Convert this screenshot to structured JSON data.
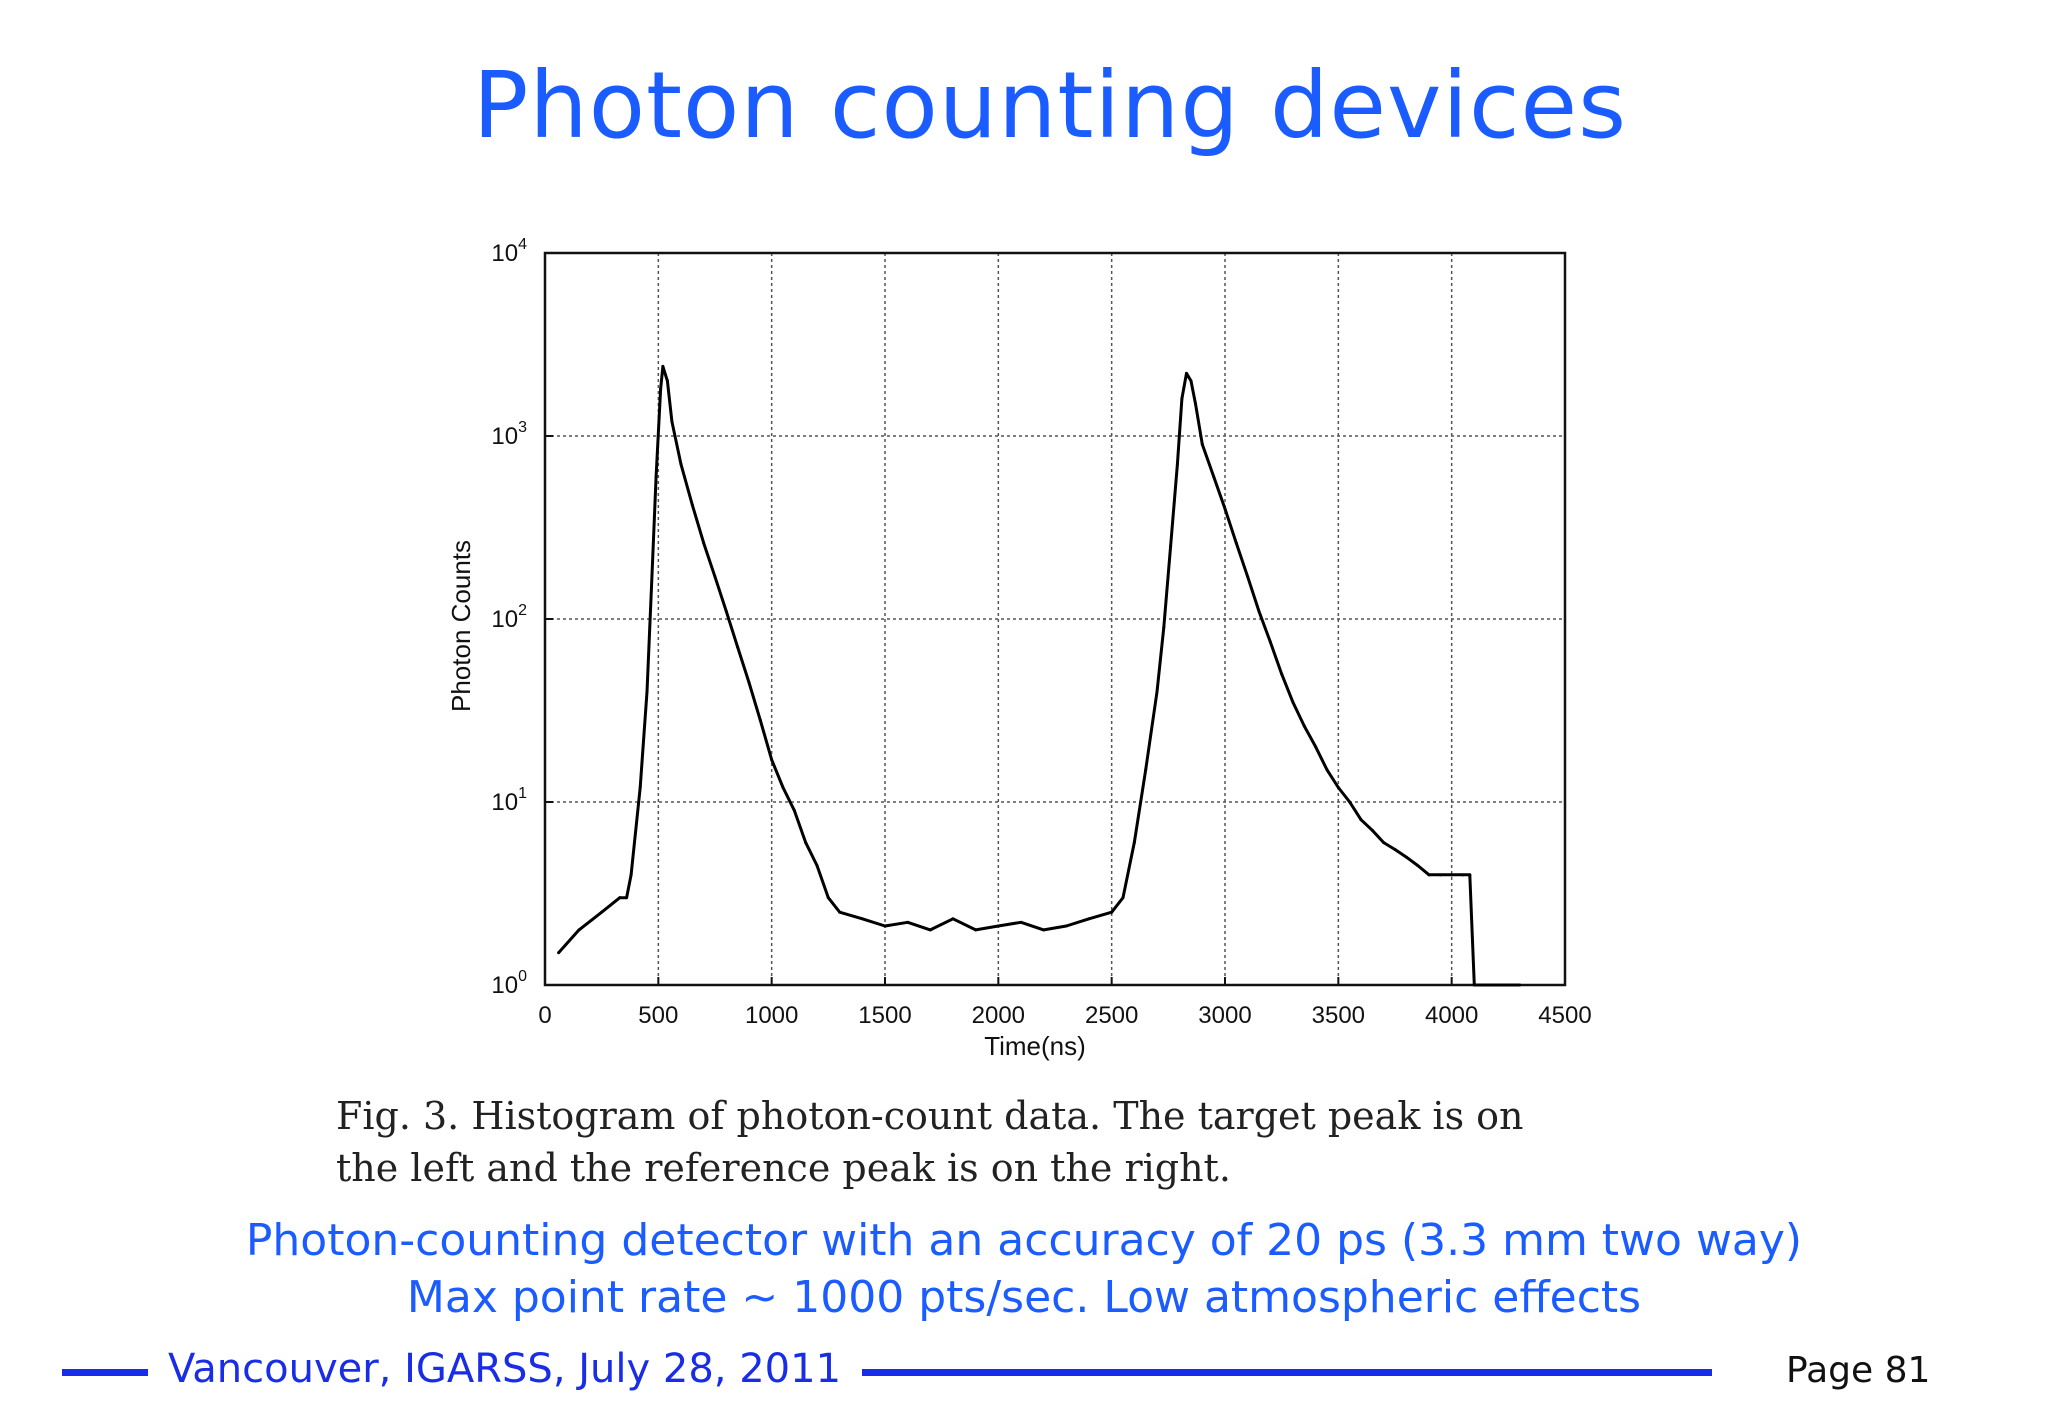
{
  "slide": {
    "title": "Photon counting devices",
    "caption_line1": "Fig. 3.   Histogram of photon-count data.   The target peak is on",
    "caption_line2": "the left and the reference peak is on the right.",
    "note_line1": "Photon-counting detector with an accuracy of 20 ps (3.3 mm two way)",
    "note_line2": "Max point rate ~ 1000 pts/sec.  Low atmospheric effects",
    "footer": "Vancouver, IGARSS, July 28, 2011",
    "page": "Page 81",
    "accent_color": "#1a5cff",
    "footer_color": "#1a2de6"
  },
  "chart_data": {
    "type": "line",
    "xlabel": "Time(ns)",
    "ylabel": "Photon Counts",
    "xlim": [
      0,
      4500
    ],
    "ylim": [
      1,
      10000
    ],
    "yscale": "log",
    "grid": true,
    "x_ticks": [
      "0",
      "500",
      "1000",
      "1500",
      "2000",
      "2500",
      "3000",
      "3500",
      "4000",
      "4500"
    ],
    "y_ticks": [
      {
        "base": "10",
        "exp": "0"
      },
      {
        "base": "10",
        "exp": "1"
      },
      {
        "base": "10",
        "exp": "2"
      },
      {
        "base": "10",
        "exp": "3"
      },
      {
        "base": "10",
        "exp": "4"
      }
    ],
    "series": [
      {
        "x": [
          60,
          150,
          250,
          330,
          360,
          380,
          420,
          450,
          470,
          490,
          510,
          520,
          540,
          560,
          600,
          650,
          700,
          750,
          800,
          850,
          900,
          950,
          1000,
          1050,
          1100,
          1150,
          1200,
          1250,
          1300,
          1400,
          1500,
          1600,
          1700,
          1800,
          1900,
          2000,
          2100,
          2200,
          2300,
          2400,
          2500,
          2550,
          2600,
          2650,
          2700,
          2730,
          2760,
          2790,
          2810,
          2830,
          2850,
          2870,
          2900,
          2950,
          3000,
          3050,
          3100,
          3150,
          3200,
          3250,
          3300,
          3350,
          3400,
          3450,
          3500,
          3550,
          3600,
          3650,
          3700,
          3750,
          3800,
          3850,
          3900,
          3950,
          4000,
          4050,
          4080,
          4100,
          4300
        ],
        "y": [
          1.5,
          2,
          2.5,
          3,
          3,
          4,
          12,
          40,
          150,
          600,
          1800,
          2400,
          2000,
          1200,
          700,
          420,
          260,
          170,
          110,
          70,
          45,
          28,
          17,
          12,
          9,
          6,
          4.5,
          3,
          2.5,
          2.3,
          2.1,
          2.2,
          2,
          2.3,
          2,
          2.1,
          2.2,
          2,
          2.1,
          2.3,
          2.5,
          3,
          6,
          15,
          40,
          90,
          250,
          700,
          1600,
          2200,
          2000,
          1500,
          900,
          600,
          400,
          260,
          170,
          110,
          75,
          50,
          35,
          26,
          20,
          15,
          12,
          10,
          8,
          7,
          6,
          5.5,
          5,
          4.5,
          4,
          4,
          4,
          4,
          4,
          1,
          1
        ]
      }
    ]
  }
}
